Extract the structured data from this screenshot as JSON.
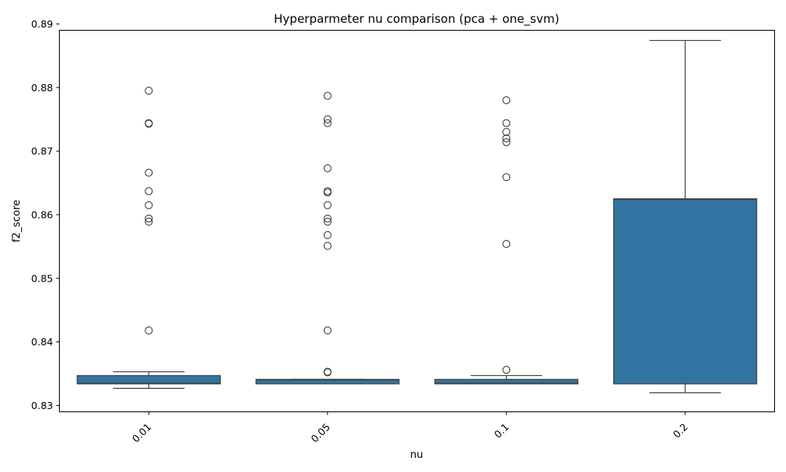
{
  "chart_data": {
    "type": "box",
    "title": "Hyperparmeter nu comparison (pca + one_svm)",
    "xlabel": "nu",
    "ylabel": "f2_score",
    "ylim": [
      0.829,
      0.889
    ],
    "yticks": [
      0.83,
      0.84,
      0.85,
      0.86,
      0.87,
      0.88,
      0.89
    ],
    "ytick_labels": [
      "0.83",
      "0.84",
      "0.85",
      "0.86",
      "0.87",
      "0.88",
      "0.89"
    ],
    "categories": [
      "0.01",
      "0.05",
      "0.1",
      "0.2"
    ],
    "x_tick_rotation": 45,
    "grid": false,
    "box_color": "#3274a1",
    "edge_color": "#3f3f3f",
    "boxes": [
      {
        "category": "0.01",
        "whisker_low": 0.8327,
        "q1": 0.8334,
        "median": 0.8335,
        "q3": 0.8347,
        "whisker_high": 0.8353,
        "outliers": [
          0.8795,
          0.8744,
          0.8743,
          0.8666,
          0.8637,
          0.8615,
          0.8594,
          0.8589,
          0.8418
        ]
      },
      {
        "category": "0.05",
        "whisker_low": 0.8334,
        "q1": 0.8334,
        "median": 0.834,
        "q3": 0.8341,
        "whisker_high": 0.8341,
        "outliers": [
          0.8787,
          0.875,
          0.8744,
          0.8673,
          0.8637,
          0.8635,
          0.8615,
          0.8594,
          0.8589,
          0.8568,
          0.8551,
          0.8418,
          0.8353,
          0.8352
        ]
      },
      {
        "category": "0.1",
        "whisker_low": 0.8334,
        "q1": 0.8334,
        "median": 0.8335,
        "q3": 0.8341,
        "whisker_high": 0.8347,
        "outliers": [
          0.878,
          0.8744,
          0.873,
          0.872,
          0.8714,
          0.8659,
          0.8554,
          0.8356
        ]
      },
      {
        "category": "0.2",
        "whisker_low": 0.832,
        "q1": 0.8334,
        "median": 0.8624,
        "q3": 0.8625,
        "whisker_high": 0.8874,
        "outliers": []
      }
    ]
  }
}
